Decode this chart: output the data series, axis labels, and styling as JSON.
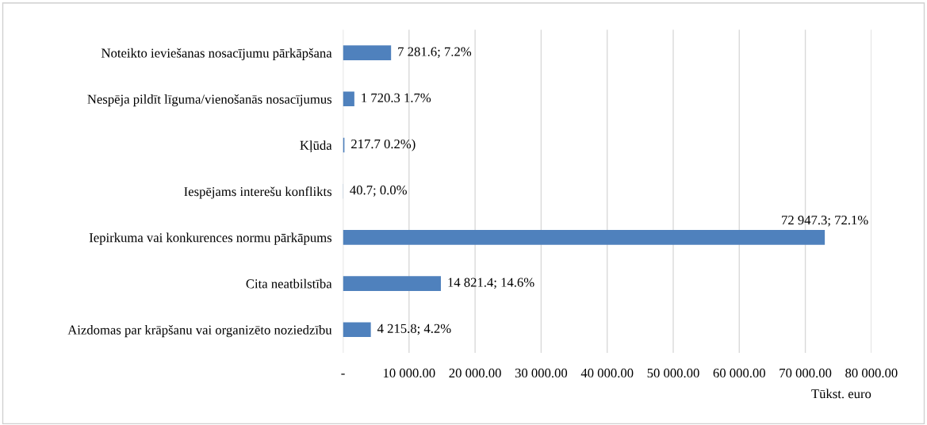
{
  "chart_data": {
    "type": "bar",
    "orientation": "horizontal",
    "xlabel": "Tūkst. euro",
    "categories": [
      "Noteikto ieviešanas nosacījumu pārkāpšana",
      "Nespēja pildīt līguma/vienošanās nosacījumus",
      "Kļūda",
      "Iespējams interešu konflikts",
      "Iepirkuma vai konkurences normu pārkāpums",
      "Cita neatbilstība",
      "Aizdomas par krāpšanu vai organizēto noziedzību"
    ],
    "values": [
      7281.6,
      1720.3,
      217.7,
      40.7,
      72947.3,
      14821.4,
      4215.8
    ],
    "value_labels": [
      "7 281.6; 7.2%",
      "1 720.3 1.7%",
      "217.7 0.2%)",
      "40.7; 0.0%",
      "72 947.3; 72.1%",
      "14 821.4; 14.6%",
      "4 215.8; 4.2%"
    ],
    "color": "#4f81bd",
    "xlim": [
      0,
      80000
    ],
    "xticks": [
      {
        "value": 0,
        "label": "-"
      },
      {
        "value": 10000,
        "label": "10 000.00"
      },
      {
        "value": 20000,
        "label": "20 000.00"
      },
      {
        "value": 30000,
        "label": "30 000.00"
      },
      {
        "value": 40000,
        "label": "40 000.00"
      },
      {
        "value": 50000,
        "label": "50 000.00"
      },
      {
        "value": 60000,
        "label": "60 000.00"
      },
      {
        "value": 70000,
        "label": "70 000.00"
      },
      {
        "value": 80000,
        "label": "80 000.00"
      }
    ],
    "grid": "x",
    "legend": false
  }
}
